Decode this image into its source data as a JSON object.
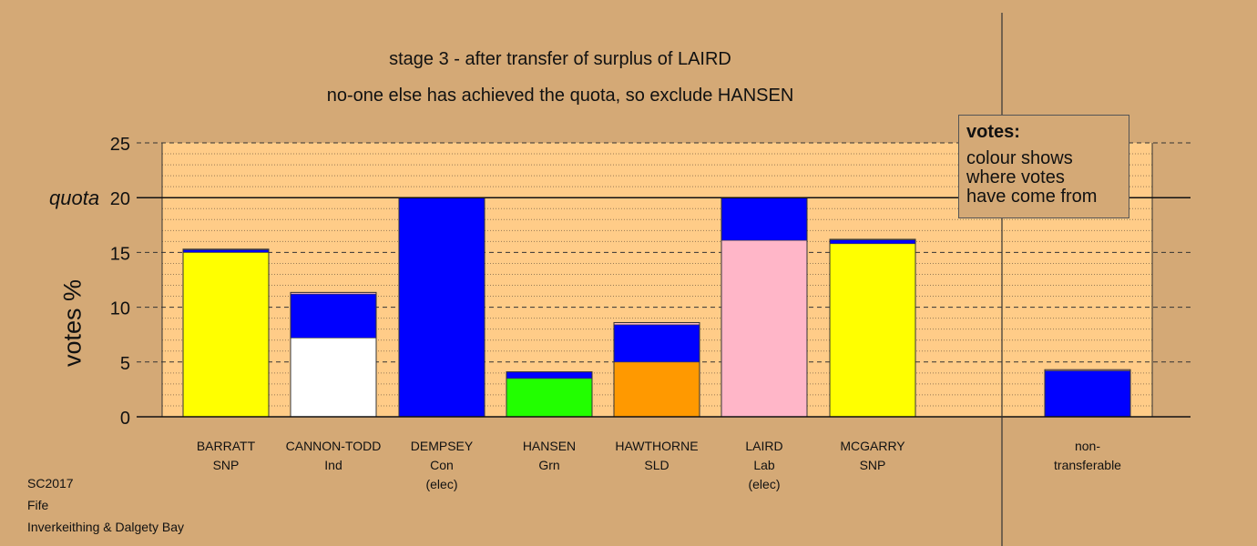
{
  "chart_data": {
    "type": "bar",
    "title": "stage 3 - after transfer of surplus of LAIRD",
    "subtitle": "no-one else has achieved the quota, so exclude HANSEN",
    "ylabel": "votes %",
    "ylim": [
      0,
      25
    ],
    "yticks": [
      "0",
      "5",
      "10",
      "15",
      "20",
      "25"
    ],
    "quota_label": "quota",
    "quota_value": 20,
    "categories": [
      {
        "name": "BARRATT",
        "party": "SNP",
        "note": ""
      },
      {
        "name": "CANNON-TODD",
        "party": "Ind",
        "note": ""
      },
      {
        "name": "DEMPSEY",
        "party": "Con",
        "note": "(elec)"
      },
      {
        "name": "HANSEN",
        "party": "Grn",
        "note": ""
      },
      {
        "name": "HAWTHORNE",
        "party": "SLD",
        "note": ""
      },
      {
        "name": "LAIRD",
        "party": "Lab",
        "note": "(elec)"
      },
      {
        "name": "MCGARRY",
        "party": "SNP",
        "note": ""
      }
    ],
    "nontransferable": {
      "line1": "non-",
      "line2": "transferable"
    },
    "stacks": [
      [
        {
          "color": "#ffff00",
          "value": 15.0
        },
        {
          "color": "#0000ff",
          "value": 0.25
        },
        {
          "color": "#ffb6c8",
          "value": 0.05
        }
      ],
      [
        {
          "color": "#ffffff",
          "value": 7.2
        },
        {
          "color": "#0000ff",
          "value": 4.0
        },
        {
          "color": "#ffb6c8",
          "value": 0.15
        }
      ],
      [
        {
          "color": "#0000ff",
          "value": 20.0
        }
      ],
      [
        {
          "color": "#22ff00",
          "value": 3.5
        },
        {
          "color": "#0000ff",
          "value": 0.6
        }
      ],
      [
        {
          "color": "#ff9900",
          "value": 5.0
        },
        {
          "color": "#0000ff",
          "value": 3.4
        },
        {
          "color": "#ffb6c8",
          "value": 0.2
        }
      ],
      [
        {
          "color": "#ffb6c8",
          "value": 16.1
        },
        {
          "color": "#0000ff",
          "value": 3.9
        }
      ],
      [
        {
          "color": "#ffff00",
          "value": 15.8
        },
        {
          "color": "#0000ff",
          "value": 0.35
        },
        {
          "color": "#ffb6c8",
          "value": 0.05
        }
      ]
    ],
    "nontransferable_stack": [
      {
        "color": "#0000ff",
        "value": 4.2
      },
      {
        "color": "#ffb6c8",
        "value": 0.1
      }
    ],
    "grid": true,
    "legend_position": "top-right"
  },
  "legend": {
    "title": "votes:",
    "line1": "colour shows",
    "line2": "where votes",
    "line3": "have come from"
  },
  "source": {
    "line1": "SC2017",
    "line2": "Fife",
    "line3": "Inverkeithing & Dalgety Bay"
  },
  "colors": {
    "background": "#d4a976",
    "plot_bg": "#ffcc88"
  }
}
